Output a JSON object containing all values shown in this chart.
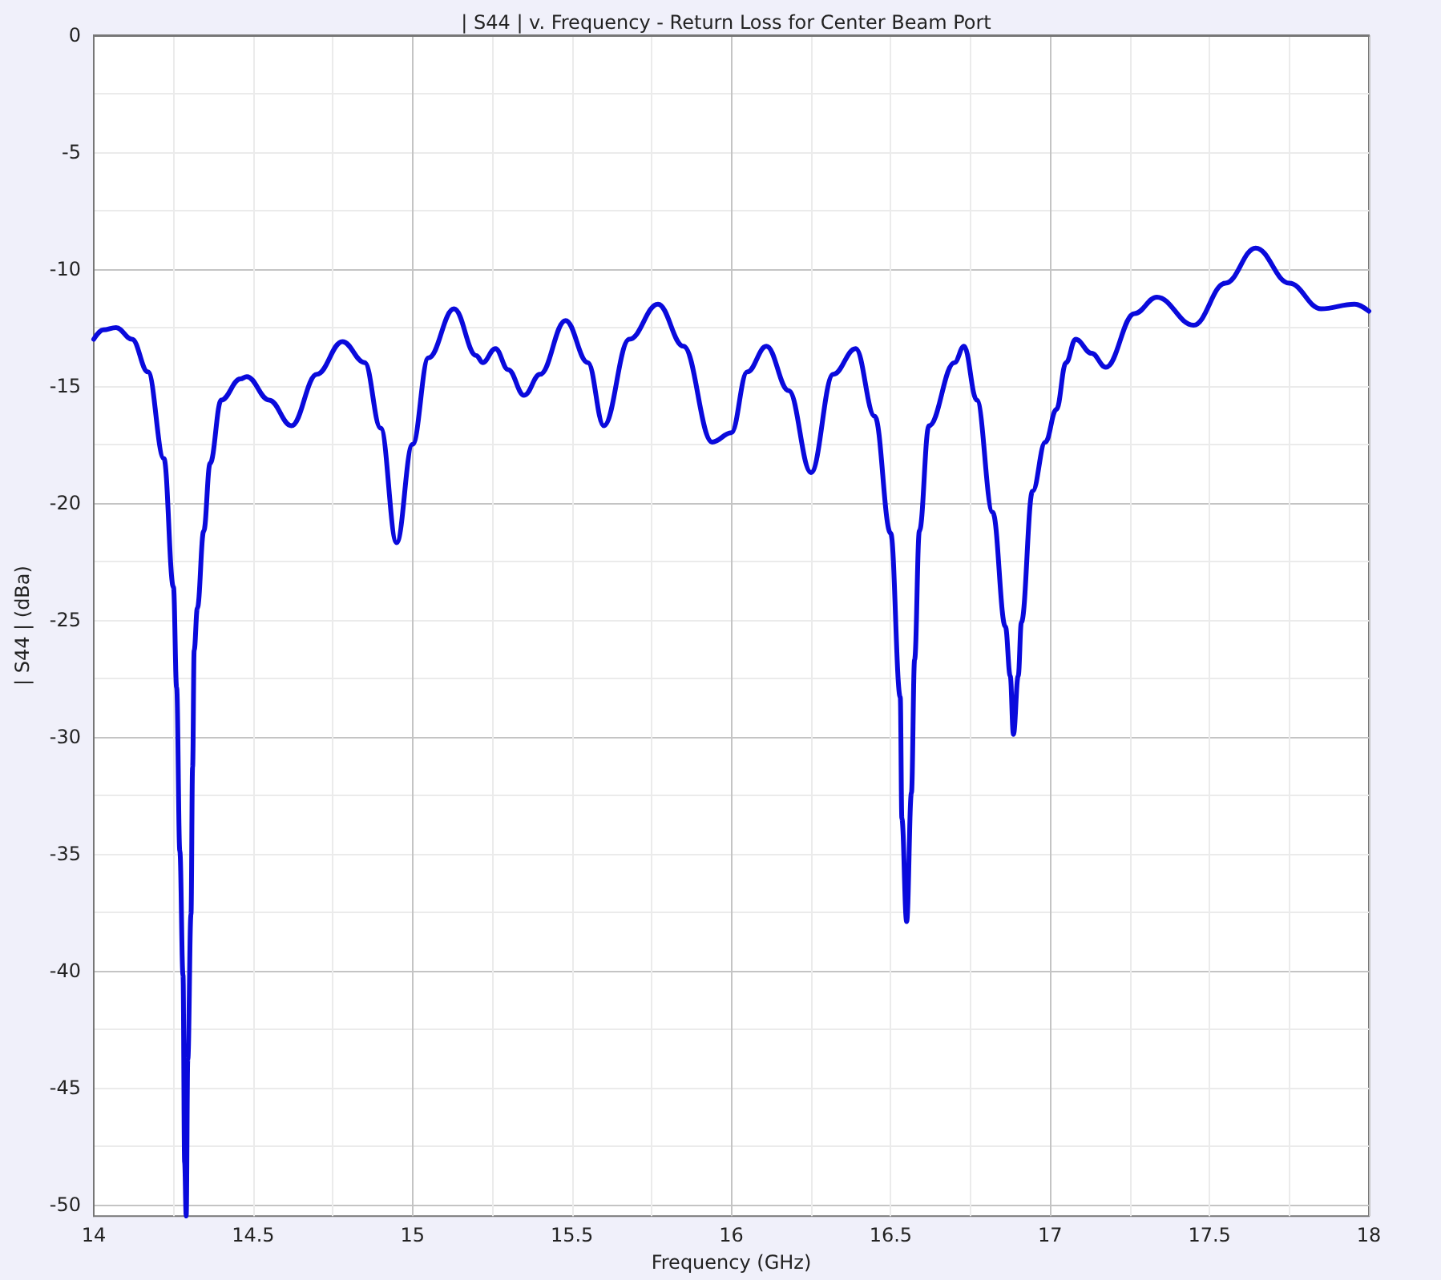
{
  "chart_data": {
    "type": "line",
    "title": "| S44 | v. Frequency - Return Loss for Center Beam Port",
    "xlabel": "Frequency (GHz)",
    "ylabel": "| S44 | (dBa)",
    "xlim": [
      14,
      18
    ],
    "xticks": [
      14,
      14.5,
      15,
      15.5,
      16,
      16.5,
      17,
      17.5,
      18
    ],
    "ylim": [
      -50.5,
      0
    ],
    "yticks": [
      0,
      -5,
      -10,
      -15,
      -20,
      -25,
      -30,
      -35,
      -40,
      -45,
      -50
    ],
    "grid": true,
    "marker": "none",
    "line_style": "solid",
    "series": [
      {
        "color": "#0a0adc",
        "x": [
          14.0,
          14.03,
          14.07,
          14.12,
          14.17,
          14.22,
          14.25,
          14.26,
          14.27,
          14.28,
          14.285,
          14.29,
          14.295,
          14.305,
          14.31,
          14.315,
          14.325,
          14.345,
          14.365,
          14.4,
          14.46,
          14.48,
          14.55,
          14.62,
          14.7,
          14.78,
          14.85,
          14.9,
          14.95,
          15.0,
          15.05,
          15.13,
          15.2,
          15.22,
          15.26,
          15.3,
          15.35,
          15.4,
          15.48,
          15.55,
          15.6,
          15.68,
          15.77,
          15.85,
          15.94,
          16.0,
          16.05,
          16.11,
          16.18,
          16.25,
          16.32,
          16.39,
          16.45,
          16.5,
          16.53,
          16.535,
          16.55,
          16.565,
          16.575,
          16.59,
          16.62,
          16.7,
          16.73,
          16.77,
          16.82,
          16.86,
          16.875,
          16.885,
          16.9,
          16.91,
          16.945,
          16.985,
          17.02,
          17.05,
          17.08,
          17.13,
          17.175,
          17.265,
          17.335,
          17.45,
          17.55,
          17.645,
          17.75,
          17.85,
          17.955,
          18.0
        ],
        "values": [
          -13.0,
          -12.6,
          -12.5,
          -13.0,
          -14.4,
          -18.1,
          -23.6,
          -27.9,
          -34.9,
          -40.2,
          -48.2,
          -50.5,
          -43.8,
          -37.6,
          -31.3,
          -26.3,
          -24.5,
          -21.2,
          -18.3,
          -15.6,
          -14.7,
          -14.6,
          -15.6,
          -16.7,
          -14.5,
          -13.1,
          -14.0,
          -16.8,
          -21.7,
          -17.5,
          -13.8,
          -11.7,
          -13.7,
          -14.0,
          -13.4,
          -14.3,
          -15.4,
          -14.5,
          -12.2,
          -14.0,
          -16.7,
          -13.0,
          -11.5,
          -13.3,
          -17.4,
          -17.0,
          -14.4,
          -13.3,
          -15.2,
          -18.7,
          -14.5,
          -13.4,
          -16.3,
          -21.3,
          -28.3,
          -33.5,
          -37.9,
          -32.4,
          -26.7,
          -21.2,
          -16.7,
          -14.0,
          -13.3,
          -15.6,
          -20.4,
          -25.3,
          -27.4,
          -29.9,
          -27.4,
          -25.1,
          -19.5,
          -17.4,
          -16.0,
          -14.0,
          -13.0,
          -13.6,
          -14.2,
          -11.9,
          -11.2,
          -12.4,
          -10.6,
          -9.1,
          -10.6,
          -11.7,
          -11.5,
          -11.8
        ]
      }
    ]
  }
}
